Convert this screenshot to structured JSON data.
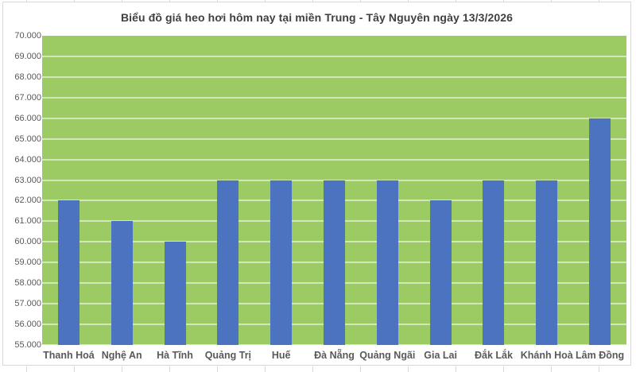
{
  "page": {
    "background_color": "#FFFFFF",
    "chart_border_color": "#D9D9D9",
    "sheet_gridline_color": "#D9D9D9"
  },
  "chart_data": {
    "type": "bar",
    "title": "Biểu đồ giá heo hơi hôm nay tại miền Trung - Tây Nguyên ngày 13/3/2026",
    "categories": [
      "Thanh Hoá",
      "Nghệ An",
      "Hà Tĩnh",
      "Quảng Trị",
      "Huế",
      "Đà Nẵng",
      "Quảng Ngãi",
      "Gia Lai",
      "Đắk Lắk",
      "Khánh Hoà",
      "Lâm Đồng"
    ],
    "values": [
      62000,
      61000,
      60000,
      63000,
      63000,
      63000,
      63000,
      62000,
      63000,
      63000,
      66000
    ],
    "xlabel": "",
    "ylabel": "",
    "ylim": [
      55000,
      70000
    ],
    "ytick_step": 1000,
    "ytick_labels": [
      "70.000",
      "69.000",
      "68.000",
      "67.000",
      "66.000",
      "65.000",
      "64.000",
      "63.000",
      "62.000",
      "61.000",
      "60.000",
      "59.000",
      "58.000",
      "57.000",
      "56.000",
      "55.000"
    ],
    "grid": "horizontal-only",
    "legend": "none",
    "colors": {
      "bar_fill": "#4C73C0",
      "plot_background": "#9CCB63",
      "gridline": "rgba(255,255,255,0.55)",
      "title_text": "#404040",
      "axis_text": "#595959"
    }
  }
}
